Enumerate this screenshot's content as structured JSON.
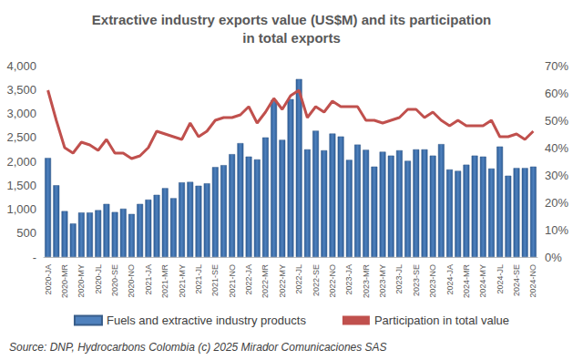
{
  "chart_data": {
    "type": "bar",
    "title": "Extractive industry exports value (US$M) and its participation\nin total exports",
    "annotations": [
      "Source: DNP, Hydrocarbons Colombia (c) 2025 Mirador Comunicaciones SAS"
    ],
    "categories": [
      "2020-JA",
      null,
      "2020-MR",
      null,
      "2020-MY",
      null,
      "2020-JL",
      null,
      "2020-SE",
      null,
      "2020-NO",
      null,
      "2021-JA",
      null,
      "2021-MR",
      null,
      "2021-MY",
      null,
      "2021-JL",
      null,
      "2021-SE",
      null,
      "2021-NO",
      null,
      "2022-JA",
      null,
      "2022-MR",
      null,
      "2022-MY",
      null,
      "2022-JL",
      null,
      "2022-SE",
      null,
      "2022-NO",
      null,
      "2023-JA",
      null,
      "2023-MR",
      null,
      "2023-MY",
      null,
      "2023-JL",
      null,
      "2023-SE",
      null,
      "2023-NO",
      null,
      "2024-JA",
      null,
      "2024-MR",
      null,
      "2024-MY",
      null,
      "2024-JL",
      null,
      "2024-SE",
      null,
      "2024-NO"
    ],
    "series": [
      {
        "name": "Fuels and extractive industry products",
        "type": "bar",
        "color": "#4f81bd",
        "values": [
          2070,
          1500,
          960,
          700,
          930,
          930,
          980,
          1110,
          940,
          1010,
          900,
          1110,
          1200,
          1300,
          1440,
          1230,
          1560,
          1570,
          1490,
          1540,
          1880,
          1920,
          2150,
          2380,
          2100,
          2040,
          2500,
          3280,
          2450,
          3300,
          3720,
          2250,
          2640,
          2230,
          2580,
          2520,
          2030,
          2350,
          2240,
          1890,
          2200,
          2120,
          2230,
          2010,
          2250,
          2250,
          2120,
          2360,
          1830,
          1800,
          1930,
          2120,
          2100,
          1850,
          2310,
          1700,
          1860,
          1860,
          1890
        ]
      },
      {
        "name": "Participation in total value",
        "type": "line",
        "color": "#c0504d",
        "axis": "y2",
        "marker": "none",
        "values": [
          61,
          50,
          40,
          38,
          42,
          41,
          39,
          43,
          38,
          38,
          36,
          37,
          40,
          46,
          45,
          44,
          43,
          49,
          44,
          46,
          50,
          51,
          51,
          52,
          55,
          49,
          53,
          58,
          54,
          59,
          61,
          51,
          55,
          53,
          57,
          55,
          55,
          55,
          50,
          50,
          49,
          50,
          51,
          54,
          54,
          51,
          53,
          50,
          48,
          50,
          48,
          48,
          48,
          50,
          44,
          44,
          45,
          43,
          46
        ]
      }
    ],
    "ylim": [
      0,
      4000
    ],
    "yticks": [
      {
        "value": 0,
        "label": "-"
      },
      500,
      {
        "value": 1000,
        "label": "1,000"
      },
      {
        "value": 1500,
        "label": "1,500"
      },
      {
        "value": 2000,
        "label": "2,000"
      },
      {
        "value": 2500,
        "label": "2,500"
      },
      {
        "value": 3000,
        "label": "3,000"
      },
      {
        "value": 3500,
        "label": "3,500"
      },
      {
        "value": 4000,
        "label": "4,000"
      }
    ],
    "y2lim": [
      0,
      70
    ],
    "y2ticks": [
      {
        "value": 0,
        "label": "0%"
      },
      {
        "value": 10,
        "label": "10%"
      },
      {
        "value": 20,
        "label": "20%"
      },
      {
        "value": 30,
        "label": "30%"
      },
      {
        "value": 40,
        "label": "40%"
      },
      {
        "value": 50,
        "label": "50%"
      },
      {
        "value": 60,
        "label": "60%"
      },
      {
        "value": 70,
        "label": "70%"
      }
    ],
    "grid": false,
    "legend": "bottom"
  }
}
